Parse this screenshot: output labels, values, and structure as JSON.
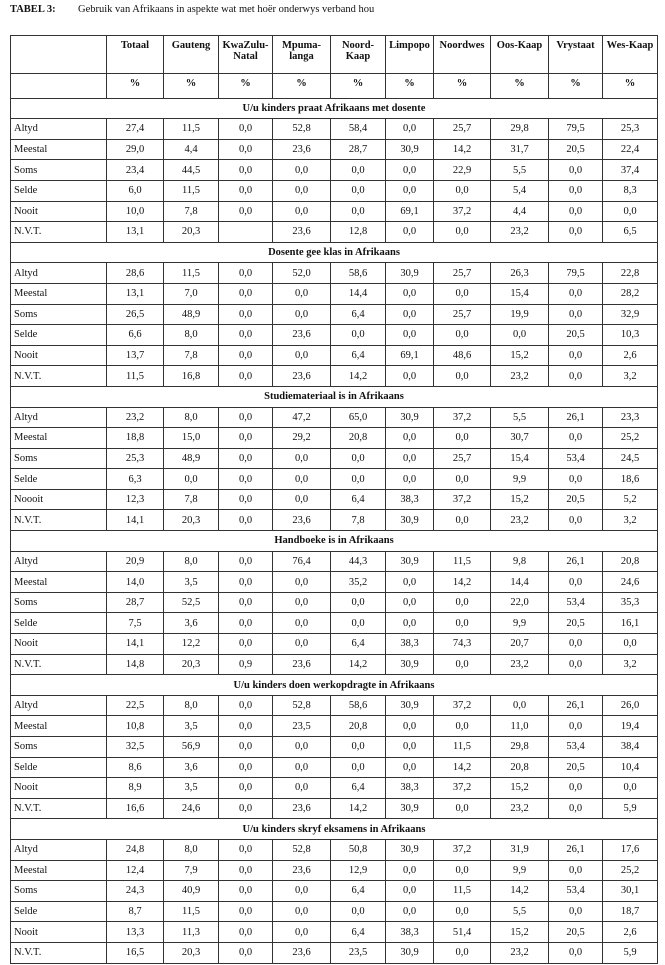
{
  "title": {
    "label": "TABEL 3:",
    "text": "Gebruik van Afrikaans in aspekte wat met hoër onderwys verband hou"
  },
  "table": {
    "columns": [
      "Totaal",
      "Gauteng",
      "KwaZulu-Natal",
      "Mpuma-langa",
      "Noord-Kaap",
      "Limpopo",
      "Noordwes",
      "Oos-Kaap",
      "Vrystaat",
      "Wes-Kaap"
    ],
    "units": [
      "%",
      "%",
      "%",
      "%",
      "%",
      "%",
      "%",
      "%",
      "%",
      "%"
    ],
    "sections": [
      {
        "heading": "U/u kinders praat Afrikaans met dosente",
        "rows": [
          [
            "Altyd",
            "27,4",
            "11,5",
            "0,0",
            "52,8",
            "58,4",
            "0,0",
            "25,7",
            "29,8",
            "79,5",
            "25,3"
          ],
          [
            "Meestal",
            "29,0",
            "4,4",
            "0,0",
            "23,6",
            "28,7",
            "30,9",
            "14,2",
            "31,7",
            "20,5",
            "22,4"
          ],
          [
            "Soms",
            "23,4",
            "44,5",
            "0,0",
            "0,0",
            "0,0",
            "0,0",
            "22,9",
            "5,5",
            "0,0",
            "37,4"
          ],
          [
            "Selde",
            "6,0",
            "11,5",
            "0,0",
            "0,0",
            "0,0",
            "0,0",
            "0,0",
            "5,4",
            "0,0",
            "8,3"
          ],
          [
            "Nooit",
            "10,0",
            "7,8",
            "0,0",
            "0,0",
            "0,0",
            "69,1",
            "37,2",
            "4,4",
            "0,0",
            "0,0"
          ],
          [
            "N.V.T.",
            "13,1",
            "20,3",
            null,
            "23,6",
            "12,8",
            "0,0",
            "0,0",
            "23,2",
            "0,0",
            "6,5"
          ]
        ]
      },
      {
        "heading": "Dosente gee klas in Afrikaans",
        "rows": [
          [
            "Altyd",
            "28,6",
            "11,5",
            "0,0",
            "52,0",
            "58,6",
            "30,9",
            "25,7",
            "26,3",
            "79,5",
            "22,8"
          ],
          [
            "Meestal",
            "13,1",
            "7,0",
            "0,0",
            "0,0",
            "14,4",
            "0,0",
            "0,0",
            "15,4",
            "0,0",
            "28,2"
          ],
          [
            "Soms",
            "26,5",
            "48,9",
            "0,0",
            "0,0",
            "6,4",
            "0,0",
            "25,7",
            "19,9",
            "0,0",
            "32,9"
          ],
          [
            "Selde",
            "6,6",
            "8,0",
            "0,0",
            "23,6",
            "0,0",
            "0,0",
            "0,0",
            "0,0",
            "20,5",
            "10,3"
          ],
          [
            "Nooit",
            "13,7",
            "7,8",
            "0,0",
            "0,0",
            "6,4",
            "69,1",
            "48,6",
            "15,2",
            "0,0",
            "2,6"
          ],
          [
            "N.V.T.",
            "11,5",
            "16,8",
            "0,0",
            "23,6",
            "14,2",
            "0,0",
            "0,0",
            "23,2",
            "0,0",
            "3,2"
          ]
        ]
      },
      {
        "heading": "Studiemateriaal is in Afrikaans",
        "rows": [
          [
            "Altyd",
            "23,2",
            "8,0",
            "0,0",
            "47,2",
            "65,0",
            "30,9",
            "37,2",
            "5,5",
            "26,1",
            "23,3"
          ],
          [
            "Meestal",
            "18,8",
            "15,0",
            "0,0",
            "29,2",
            "20,8",
            "0,0",
            "0,0",
            "30,7",
            "0,0",
            "25,2"
          ],
          [
            "Soms",
            "25,3",
            "48,9",
            "0,0",
            "0,0",
            "0,0",
            "0,0",
            "25,7",
            "15,4",
            "53,4",
            "24,5"
          ],
          [
            "Selde",
            "6,3",
            "0,0",
            "0,0",
            "0,0",
            "0,0",
            "0,0",
            "0,0",
            "9,9",
            "0,0",
            "18,6"
          ],
          [
            "Noooit",
            "12,3",
            "7,8",
            "0,0",
            "0,0",
            "6,4",
            "38,3",
            "37,2",
            "15,2",
            "20,5",
            "5,2"
          ],
          [
            "N.V.T.",
            "14,1",
            "20,3",
            "0,0",
            "23,6",
            "7,8",
            "30,9",
            "0,0",
            "23,2",
            "0,0",
            "3,2"
          ]
        ]
      },
      {
        "heading": "Handboeke is in Afrikaans",
        "rows": [
          [
            "Altyd",
            "20,9",
            "8,0",
            "0,0",
            "76,4",
            "44,3",
            "30,9",
            "11,5",
            "9,8",
            "26,1",
            "20,8"
          ],
          [
            "Meestal",
            "14,0",
            "3,5",
            "0,0",
            "0,0",
            "35,2",
            "0,0",
            "14,2",
            "14,4",
            "0,0",
            "24,6"
          ],
          [
            "Soms",
            "28,7",
            "52,5",
            "0,0",
            "0,0",
            "0,0",
            "0,0",
            "0,0",
            "22,0",
            "53,4",
            "35,3"
          ],
          [
            "Selde",
            "7,5",
            "3,6",
            "0,0",
            "0,0",
            "0,0",
            "0,0",
            "0,0",
            "9,9",
            "20,5",
            "16,1"
          ],
          [
            "Nooit",
            "14,1",
            "12,2",
            "0,0",
            "0,0",
            "6,4",
            "38,3",
            "74,3",
            "20,7",
            "0,0",
            "0,0"
          ],
          [
            "N.V.T.",
            "14,8",
            "20,3",
            "0,9",
            "23,6",
            "14,2",
            "30,9",
            "0,0",
            "23,2",
            "0,0",
            "3,2"
          ]
        ]
      },
      {
        "heading": "U/u kinders doen werkopdragte in Afrikaans",
        "rows": [
          [
            "Altyd",
            "22,5",
            "8,0",
            "0,0",
            "52,8",
            "58,6",
            "30,9",
            "37,2",
            "0,0",
            "26,1",
            "26,0"
          ],
          [
            "Meestal",
            "10,8",
            "3,5",
            "0,0",
            "23,5",
            "20,8",
            "0,0",
            "0,0",
            "11,0",
            "0,0",
            "19,4"
          ],
          [
            "Soms",
            "32,5",
            "56,9",
            "0,0",
            "0,0",
            "0,0",
            "0,0",
            "11,5",
            "29,8",
            "53,4",
            "38,4"
          ],
          [
            "Selde",
            "8,6",
            "3,6",
            "0,0",
            "0,0",
            "0,0",
            "0,0",
            "14,2",
            "20,8",
            "20,5",
            "10,4"
          ],
          [
            "Nooit",
            "8,9",
            "3,5",
            "0,0",
            "0,0",
            "6,4",
            "38,3",
            "37,2",
            "15,2",
            "0,0",
            "0,0"
          ],
          [
            "N.V.T.",
            "16,6",
            "24,6",
            "0,0",
            "23,6",
            "14,2",
            "30,9",
            "0,0",
            "23,2",
            "0,0",
            "5,9"
          ]
        ]
      },
      {
        "heading": "U/u kinders skryf eksamens in Afrikaans",
        "rows": [
          [
            "Altyd",
            "24,8",
            "8,0",
            "0,0",
            "52,8",
            "50,8",
            "30,9",
            "37,2",
            "31,9",
            "26,1",
            "17,6"
          ],
          [
            "Meestal",
            "12,4",
            "7,9",
            "0,0",
            "23,6",
            "12,9",
            "0,0",
            "0,0",
            "9,9",
            "0,0",
            "25,2"
          ],
          [
            "Soms",
            "24,3",
            "40,9",
            "0,0",
            "0,0",
            "6,4",
            "0,0",
            "11,5",
            "14,2",
            "53,4",
            "30,1"
          ],
          [
            "Selde",
            "8,7",
            "11,5",
            "0,0",
            "0,0",
            "0,0",
            "0,0",
            "0,0",
            "5,5",
            "0,0",
            "18,7"
          ],
          [
            "Nooit",
            "13,3",
            "11,3",
            "0,0",
            "0,0",
            "6,4",
            "38,3",
            "51,4",
            "15,2",
            "20,5",
            "2,6"
          ],
          [
            "N.V.T.",
            "16,5",
            "20,3",
            "0,0",
            "23,6",
            "23,5",
            "30,9",
            "0,0",
            "23,2",
            "0,0",
            "5,9"
          ]
        ]
      }
    ]
  }
}
